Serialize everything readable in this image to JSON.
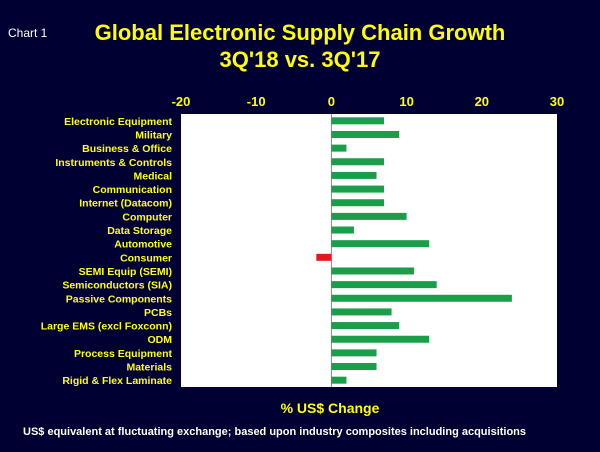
{
  "chart_label": "Chart 1",
  "chart_data": {
    "type": "bar",
    "orientation": "horizontal",
    "title": "Global Electronic Supply Chain Growth",
    "subtitle": "3Q'18 vs. 3Q'17",
    "xlabel": "% US$ Change",
    "footnote": "US$ equivalent at fluctuating exchange; based upon industry composites  including acquisitions",
    "xlim": [
      -20,
      30
    ],
    "ticks": [
      -20,
      -10,
      0,
      10,
      20,
      30
    ],
    "categories": [
      "Electronic Equipment",
      "Military",
      "Business & Office",
      "Instruments & Controls",
      "Medical",
      "Communication",
      "Internet (Datacom)",
      "Computer",
      "Data Storage",
      "Automotive",
      "Consumer",
      "SEMI Equip (SEMI)",
      "Semiconductors (SIA)",
      "Passive Components",
      "PCBs",
      "Large EMS (excl Foxconn)",
      "ODM",
      "Process Equipment",
      "Materials",
      "Rigid & Flex Laminate"
    ],
    "values": [
      7,
      9,
      2,
      7,
      6,
      7,
      7,
      10,
      3,
      13,
      -2,
      11,
      14,
      24,
      8,
      9,
      13,
      6,
      6,
      2
    ],
    "colors": {
      "positive": "#1a9e4a",
      "negative": "#e8151b",
      "plot_bg": "#ffffff"
    }
  }
}
